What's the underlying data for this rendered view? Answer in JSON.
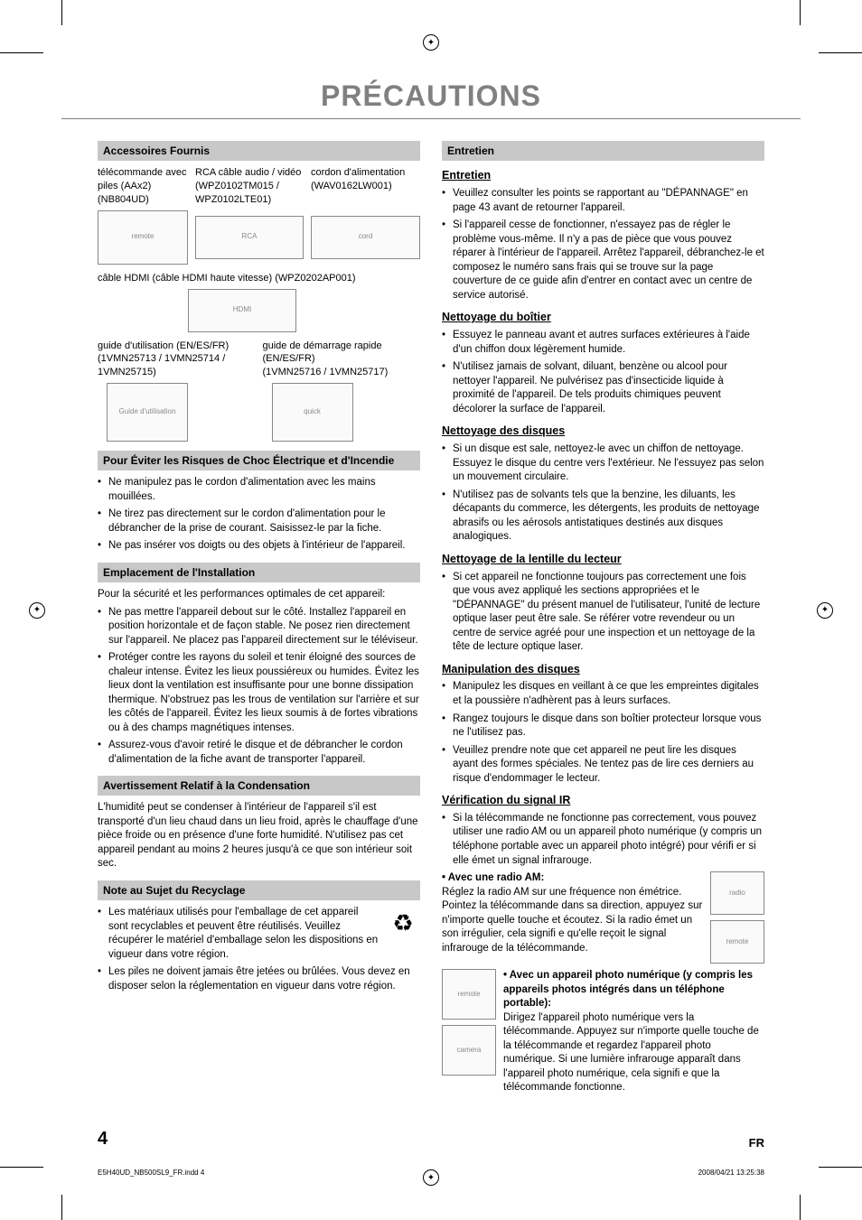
{
  "page": {
    "title": "PRÉCAUTIONS",
    "number": "4",
    "lang": "FR",
    "slug_file": "E5H40UD_NB500SL9_FR.indd   4",
    "slug_date": "2008/04/21   13:25:38"
  },
  "colors": {
    "title_color": "#808080",
    "section_bar_bg": "#c8c8c8",
    "text": "#000000",
    "background": "#ffffff"
  },
  "left": {
    "accessories": {
      "bar": "Accessoires Fournis",
      "remote_label": "télécommande avec piles (AAx2) (NB804UD)",
      "rca_label": "RCA câble audio / vidéo",
      "rca_part": "(WPZ0102TM015 / WPZ0102LTE01)",
      "power_label": "cordon d'alimentation",
      "power_part": "(WAV0162LW001)",
      "hdmi_label": "câble HDMI (câble HDMI haute vitesse)",
      "hdmi_part": "(WPZ0202AP001)",
      "guide_label": "guide d'utilisation (EN/ES/FR)",
      "guide_part": "(1VMN25713 / 1VMN25714 / 1VMN25715)",
      "quick_label": "guide de démarrage rapide (EN/ES/FR)",
      "quick_part": "(1VMN25716 / 1VMN25717)"
    },
    "shock": {
      "bar": "Pour Éviter les Risques de Choc Électrique et d'Incendie",
      "items": [
        "Ne manipulez pas le cordon d'alimentation avec les mains mouillées.",
        "Ne tirez pas directement sur le cordon d'alimentation pour le débrancher de la prise de courant. Saisissez-le par la fiche.",
        "Ne pas insérer vos doigts ou des objets à l'intérieur de l'appareil."
      ]
    },
    "placement": {
      "bar": "Emplacement de l'Installation",
      "intro": "Pour la sécurité et les performances optimales de cet appareil:",
      "items": [
        "Ne pas mettre l'appareil debout sur le côté. Installez l'appareil en position horizontale et de façon stable. Ne posez rien directement sur l'appareil. Ne placez pas l'appareil directement sur le téléviseur.",
        "Protéger contre les rayons du soleil et tenir éloigné des sources de chaleur intense. Évitez les lieux poussiéreux ou humides. Évitez les lieux dont la ventilation est insuffisante pour une bonne dissipation thermique. N'obstruez pas les trous de ventilation sur l'arrière et sur les côtés de l'appareil. Évitez les lieux soumis à de fortes vibrations ou à des champs magnétiques intenses.",
        "Assurez-vous d'avoir retiré le disque et de débrancher le cordon d'alimentation de la fiche avant de transporter l'appareil."
      ]
    },
    "condensation": {
      "bar": "Avertissement Relatif à la Condensation",
      "text": "L'humidité peut se condenser à l'intérieur de l'appareil s'il est transporté d'un lieu chaud dans un lieu froid, après le chauffage d'une pièce froide ou en présence d'une forte humidité. N'utilisez pas cet appareil pendant au moins 2 heures jusqu'à ce que son intérieur soit sec."
    },
    "recycling": {
      "bar": "Note au Sujet du Recyclage",
      "item1": "Les matériaux utilisés pour l'emballage de cet appareil sont recyclables et peuvent être réutilisés. Veuillez récupérer le matériel d'emballage selon les dispositions en vigueur dans votre région.",
      "item2": "Les piles ne doivent jamais être jetées ou brûlées. Vous devez en disposer selon la réglementation en vigueur dans votre région."
    }
  },
  "right": {
    "maintenance_bar": "Entretien",
    "maintenance": {
      "head": "Entretien",
      "items": [
        "Veuillez consulter les points se rapportant au \"DÉPANNAGE\" en page 43 avant de retourner l'appareil.",
        "Si l'appareil cesse de fonctionner, n'essayez pas de régler le problème vous-même. Il n'y a pas de pièce que vous pouvez réparer à l'intérieur de l'appareil. Arrêtez l'appareil, débranchez-le et composez le numéro sans frais qui se trouve sur la page couverture de ce guide afin d'entrer en contact avec un centre de service autorisé."
      ]
    },
    "cabinet": {
      "head": "Nettoyage du boîtier",
      "items": [
        "Essuyez le panneau avant et autres surfaces extérieures à l'aide d'un chiffon doux légèrement humide.",
        "N'utilisez jamais de solvant, diluant, benzène ou alcool pour nettoyer l'appareil. Ne pulvérisez pas d'insecticide liquide à proximité de l'appareil. De tels produits chimiques peuvent décolorer la surface de l'appareil."
      ]
    },
    "discs": {
      "head": "Nettoyage des disques",
      "items": [
        "Si un disque est sale, nettoyez-le avec un chiffon de nettoyage. Essuyez le disque du centre vers l'extérieur. Ne l'essuyez pas selon un mouvement circulaire.",
        "N'utilisez pas de solvants tels que la benzine, les diluants, les décapants du commerce, les détergents, les produits de nettoyage abrasifs ou les aérosols antistatiques destinés aux disques analogiques."
      ]
    },
    "lens": {
      "head": "Nettoyage de la lentille du lecteur",
      "items": [
        "Si cet appareil ne fonctionne toujours pas correctement une fois que vous avez appliqué les sections appropriées et le \"DÉPANNAGE\" du présent manuel de l'utilisateur, l'unité de lecture optique laser peut être sale. Se référer votre revendeur ou un centre de service agréé pour une inspection et un nettoyage de la tête de lecture optique laser."
      ]
    },
    "handling": {
      "head": "Manipulation des disques",
      "items": [
        "Manipulez les disques en veillant à ce que les empreintes digitales et la poussière n'adhèrent pas à leurs surfaces.",
        "Rangez toujours le disque dans son boîtier protecteur lorsque vous ne l'utilisez pas.",
        "Veuillez prendre note que cet appareil ne peut lire les disques ayant des formes spéciales. Ne tentez pas de lire ces derniers au risque d'endommager le lecteur."
      ]
    },
    "ir": {
      "head": "Vérification du signal IR",
      "intro": "Si la télécommande ne fonctionne pas correctement, vous pouvez utiliser une radio AM ou un appareil photo numérique (y compris un téléphone portable avec un appareil photo intégré) pour vérifi er si elle émet un signal infrarouge.",
      "am_head": "Avec une radio AM:",
      "am_text": "Réglez la radio AM sur une fréquence non émétrice. Pointez la télécommande dans sa direction, appuyez sur n'importe quelle touche et écoutez. Si la radio émet un son irrégulier, cela signifi e qu'elle reçoit le signal infrarouge de la télécommande.",
      "cam_head": "Avec un appareil photo numérique (y compris les appareils photos intégrés dans un téléphone portable):",
      "cam_text": "Dirigez l'appareil photo numérique vers la télécommande. Appuyez sur n'importe quelle touche de la télécommande et regardez l'appareil photo numérique. Si une lumière infrarouge apparaît dans l'appareil photo numérique, cela signifi e que la télécommande fonctionne."
    }
  }
}
